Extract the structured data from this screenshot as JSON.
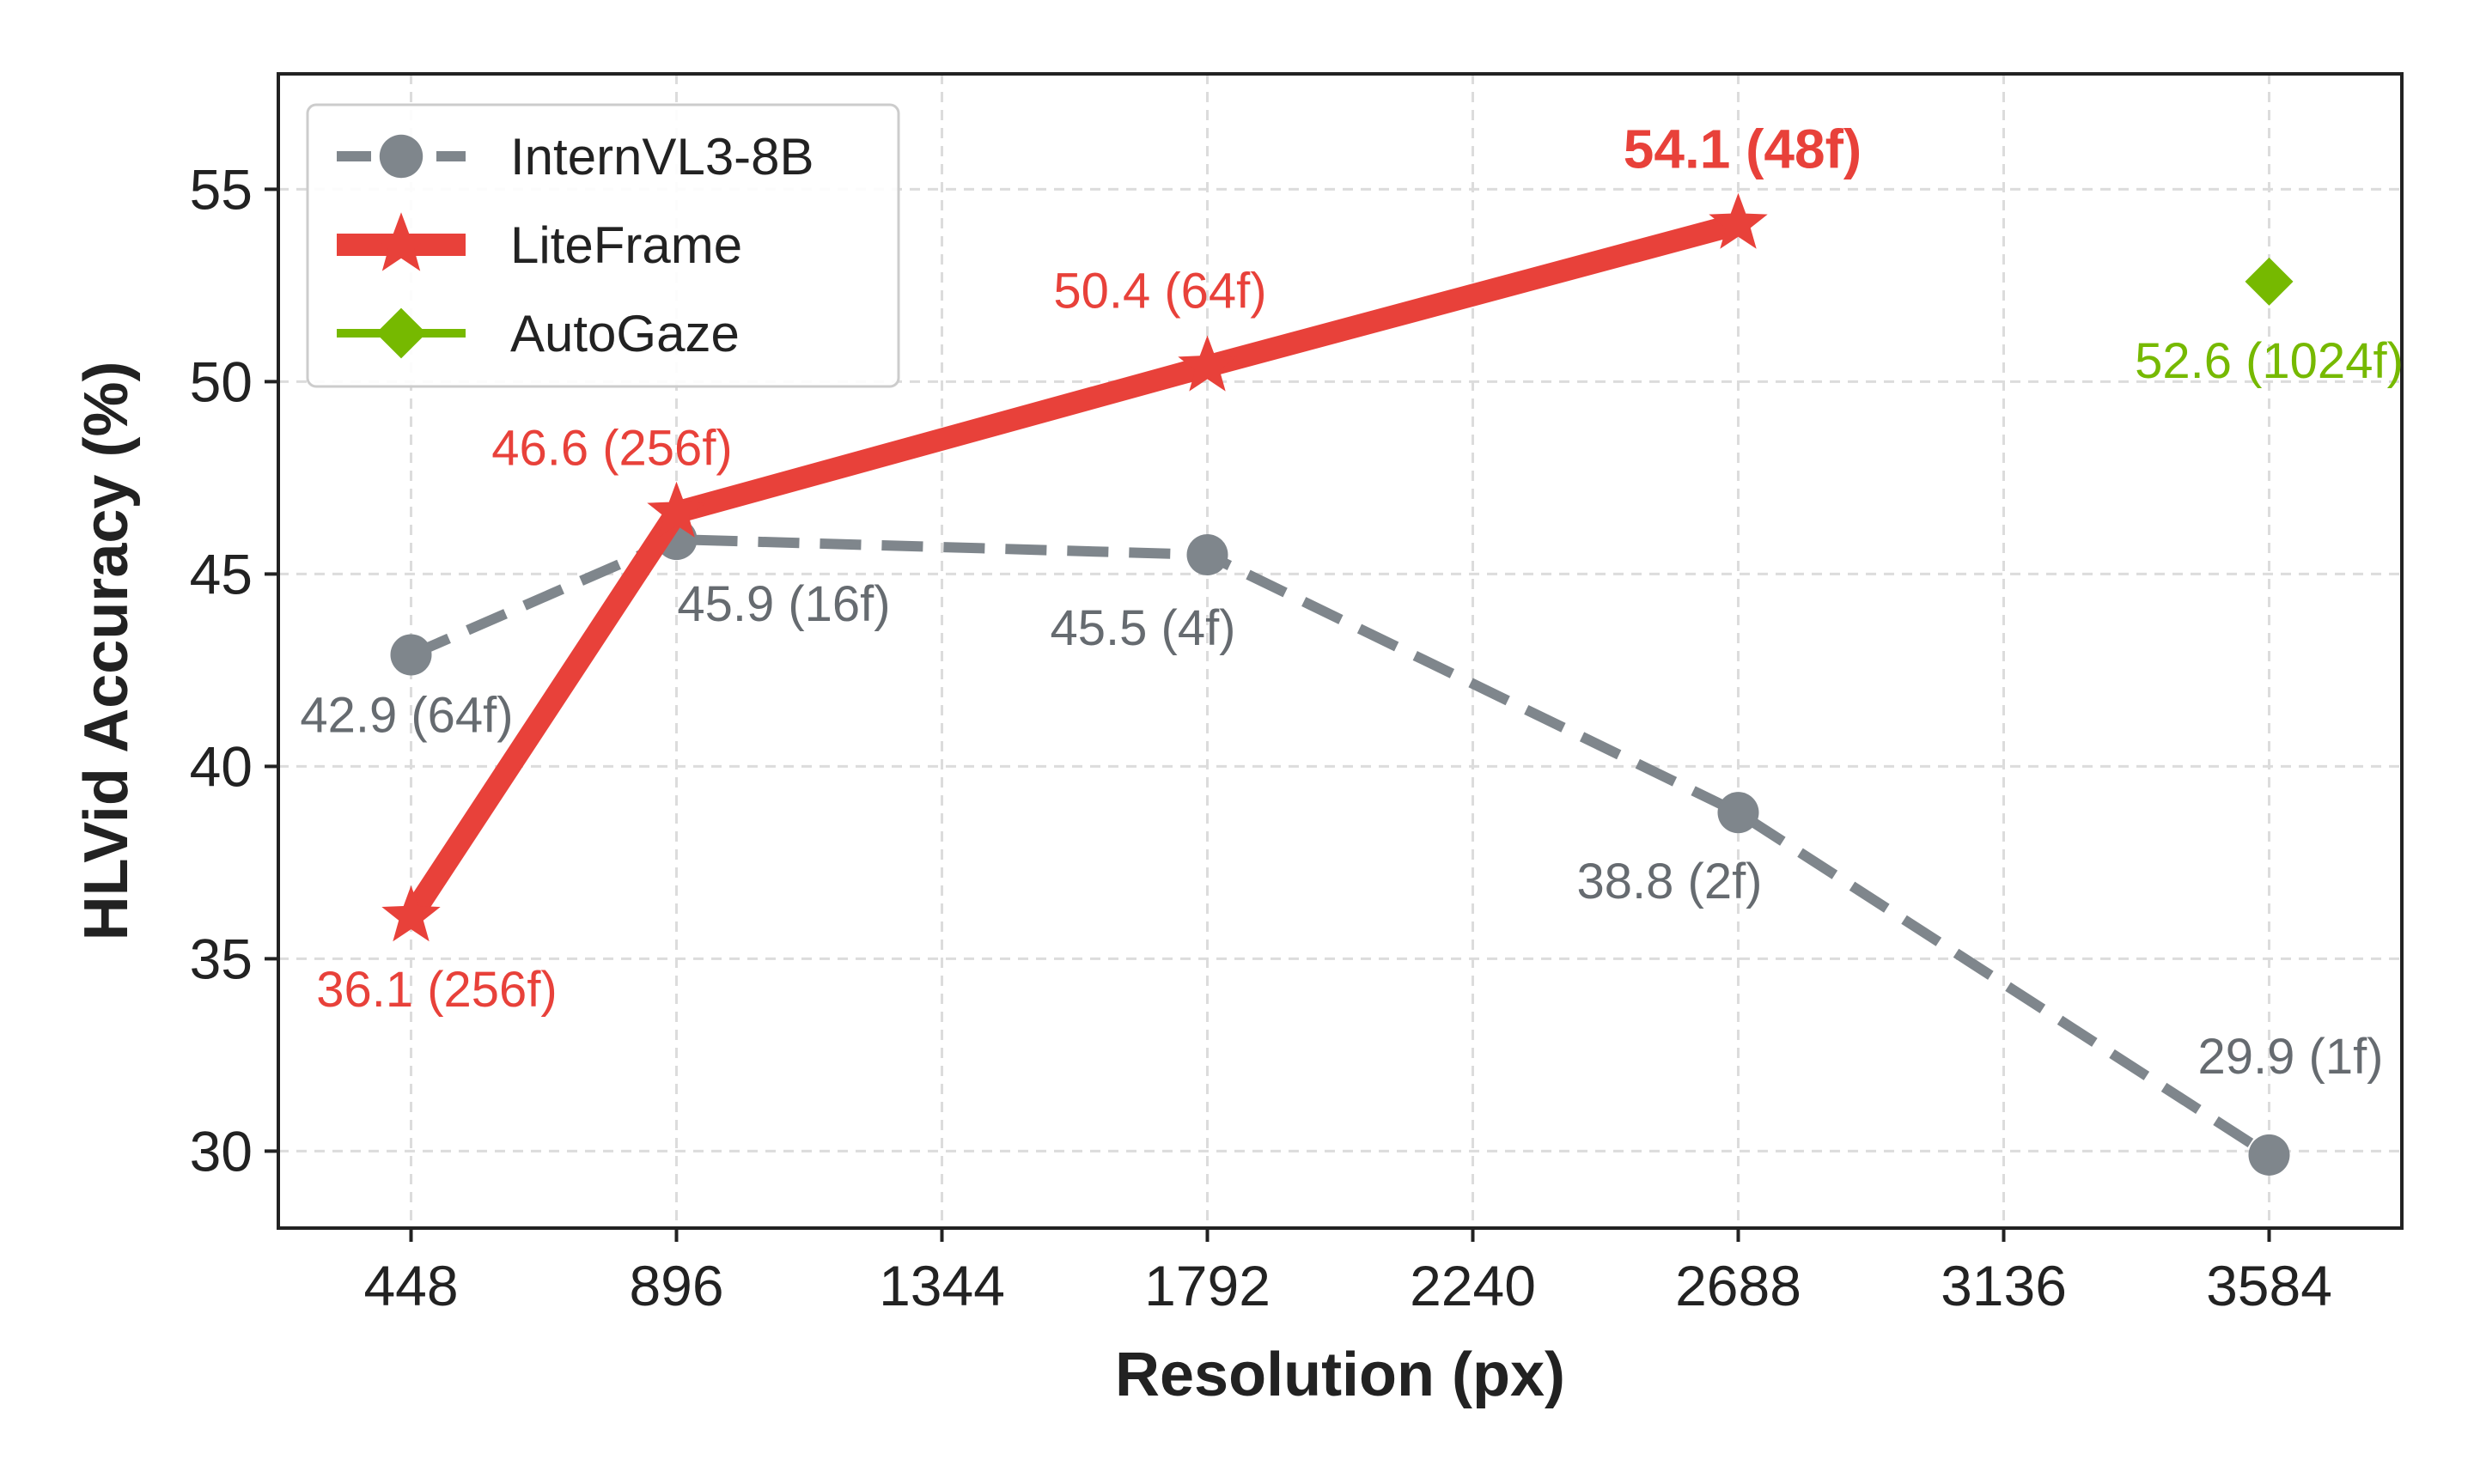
{
  "chart_data": {
    "type": "line",
    "title": "",
    "xlabel": "Resolution (px)",
    "ylabel": "HLVid Accuracy (%)",
    "xlim": [
      224,
      3808
    ],
    "ylim": [
      28,
      58
    ],
    "xticks": [
      448,
      896,
      1344,
      1792,
      2240,
      2688,
      3136,
      3584
    ],
    "yticks": [
      30,
      35,
      40,
      45,
      50,
      55
    ],
    "grid": true,
    "legend_position": "top-left",
    "series": [
      {
        "name": "InternVL3-8B",
        "color": "#7f868c",
        "marker": "circle",
        "line_style": "dashed",
        "points": [
          {
            "x": 448,
            "y": 42.9,
            "label": "42.9 (64f)"
          },
          {
            "x": 896,
            "y": 45.9,
            "label": "45.9 (16f)"
          },
          {
            "x": 1792,
            "y": 45.5,
            "label": "45.5 (4f)"
          },
          {
            "x": 2688,
            "y": 38.8,
            "label": "38.8 (2f)"
          },
          {
            "x": 3584,
            "y": 29.9,
            "label": "29.9 (1f)"
          }
        ]
      },
      {
        "name": "LiteFrame",
        "color": "#e8413a",
        "marker": "star",
        "line_style": "solid",
        "points": [
          {
            "x": 448,
            "y": 36.1,
            "label": "36.1 (256f)"
          },
          {
            "x": 896,
            "y": 46.6,
            "label": "46.6 (256f)"
          },
          {
            "x": 1792,
            "y": 50.4,
            "label": "50.4 (64f)"
          },
          {
            "x": 2688,
            "y": 54.1,
            "label": "54.1 (48f)"
          }
        ]
      },
      {
        "name": "AutoGaze",
        "color": "#76b900",
        "marker": "diamond",
        "line_style": "solid",
        "points": [
          {
            "x": 3584,
            "y": 52.6,
            "label": "52.6 (1024f)"
          }
        ]
      }
    ]
  }
}
